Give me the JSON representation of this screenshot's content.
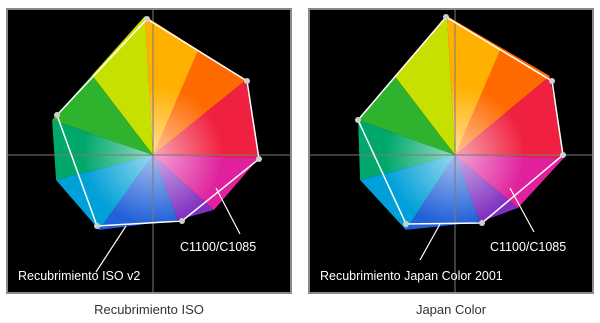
{
  "panels": [
    {
      "printer_label": "C1100/C1085",
      "overlay_label": "Recubrimiento ISO v2",
      "caption": "Recubrimiento ISO"
    },
    {
      "printer_label": "C1100/C1085",
      "overlay_label": "Recubrimiento Japan Color 2001",
      "caption": "Japan Color"
    }
  ],
  "colors": {
    "background": "#000000",
    "border": "#8a8a8a",
    "outline": "#ffffff",
    "axis": "#7a7a7a"
  }
}
